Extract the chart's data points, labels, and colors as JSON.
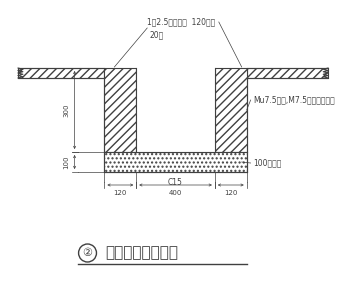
{
  "bg_color": "#ffffff",
  "line_color": "#404040",
  "title_number": "②",
  "title_text": "坡顶排水沟大样图",
  "label_mortar": "1：2.5水泥砂浆  120砖墙",
  "label_thick": "20厚",
  "label_brick": "Mu7.5机砖,M7.5水泥砂浆砌筑",
  "label_concrete": "100厚素砼",
  "label_grade": "C15",
  "dim_120a": "120",
  "dim_400": "400",
  "dim_120b": "120",
  "dim_300": "300",
  "dim_100": "100"
}
